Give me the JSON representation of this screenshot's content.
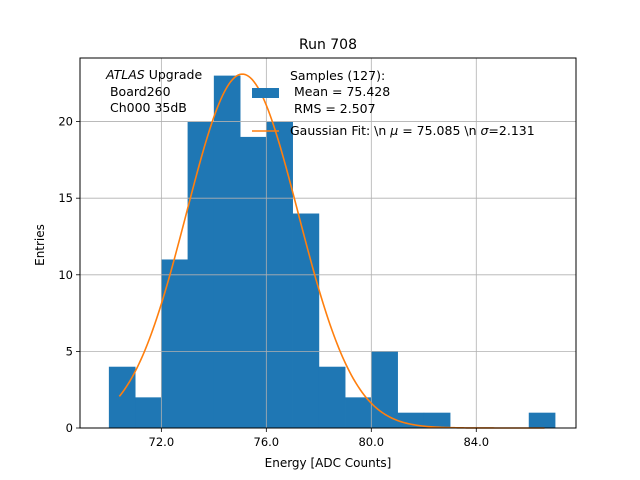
{
  "chart_data": {
    "type": "bar",
    "title": "Run 708",
    "xlabel": "Energy [ADC Counts]",
    "ylabel": "Entries",
    "xlim": [
      68.9,
      87.8
    ],
    "ylim": [
      0,
      24.15
    ],
    "grid": true,
    "xticks": [
      72,
      76,
      80,
      84
    ],
    "xtick_labels": [
      "72.0",
      "76.0",
      "80.0",
      "84.0"
    ],
    "yticks": [
      0,
      5,
      10,
      15,
      20
    ],
    "ytick_labels": [
      "0",
      "5",
      "10",
      "15",
      "20"
    ],
    "bar_color": "#1f77b4",
    "fit_color": "#ff7f0e",
    "bins": [
      {
        "x0": 70.0,
        "x1": 71.0,
        "count": 4
      },
      {
        "x0": 71.0,
        "x1": 72.0,
        "count": 2
      },
      {
        "x0": 72.0,
        "x1": 73.0,
        "count": 11
      },
      {
        "x0": 73.0,
        "x1": 74.0,
        "count": 20
      },
      {
        "x0": 74.0,
        "x1": 75.0,
        "count": 23
      },
      {
        "x0": 75.0,
        "x1": 76.0,
        "count": 19
      },
      {
        "x0": 76.0,
        "x1": 77.0,
        "count": 20
      },
      {
        "x0": 77.0,
        "x1": 78.0,
        "count": 14
      },
      {
        "x0": 78.0,
        "x1": 79.0,
        "count": 4
      },
      {
        "x0": 79.0,
        "x1": 80.0,
        "count": 2
      },
      {
        "x0": 80.0,
        "x1": 81.0,
        "count": 5
      },
      {
        "x0": 81.0,
        "x1": 82.0,
        "count": 1
      },
      {
        "x0": 82.0,
        "x1": 83.0,
        "count": 1
      },
      {
        "x0": 83.0,
        "x1": 84.0,
        "count": 0
      },
      {
        "x0": 84.0,
        "x1": 85.0,
        "count": 0
      },
      {
        "x0": 85.0,
        "x1": 86.0,
        "count": 0
      },
      {
        "x0": 86.0,
        "x1": 87.0,
        "count": 1
      }
    ],
    "fit": {
      "mu": 75.085,
      "sigma": 2.131,
      "amplitude": 23.1,
      "x_range": [
        70.4,
        86.6
      ]
    },
    "annotation": {
      "atlas": "ATLAS",
      "line1_rest": " Upgrade",
      "line2": " Board260",
      "line3": " Ch000 35dB"
    },
    "legend": {
      "placement": "upper-right",
      "samples_title": "Samples (127):",
      "samples_mean": " Mean = 75.428",
      "samples_rms": " RMS = 2.507",
      "fit_pre": "Gaussian Fit: \\n ",
      "fit_mu_sym": "μ",
      "fit_mid": " = 75.085 \\n ",
      "fit_sigma_sym": "σ",
      "fit_post": "=2.131"
    }
  }
}
